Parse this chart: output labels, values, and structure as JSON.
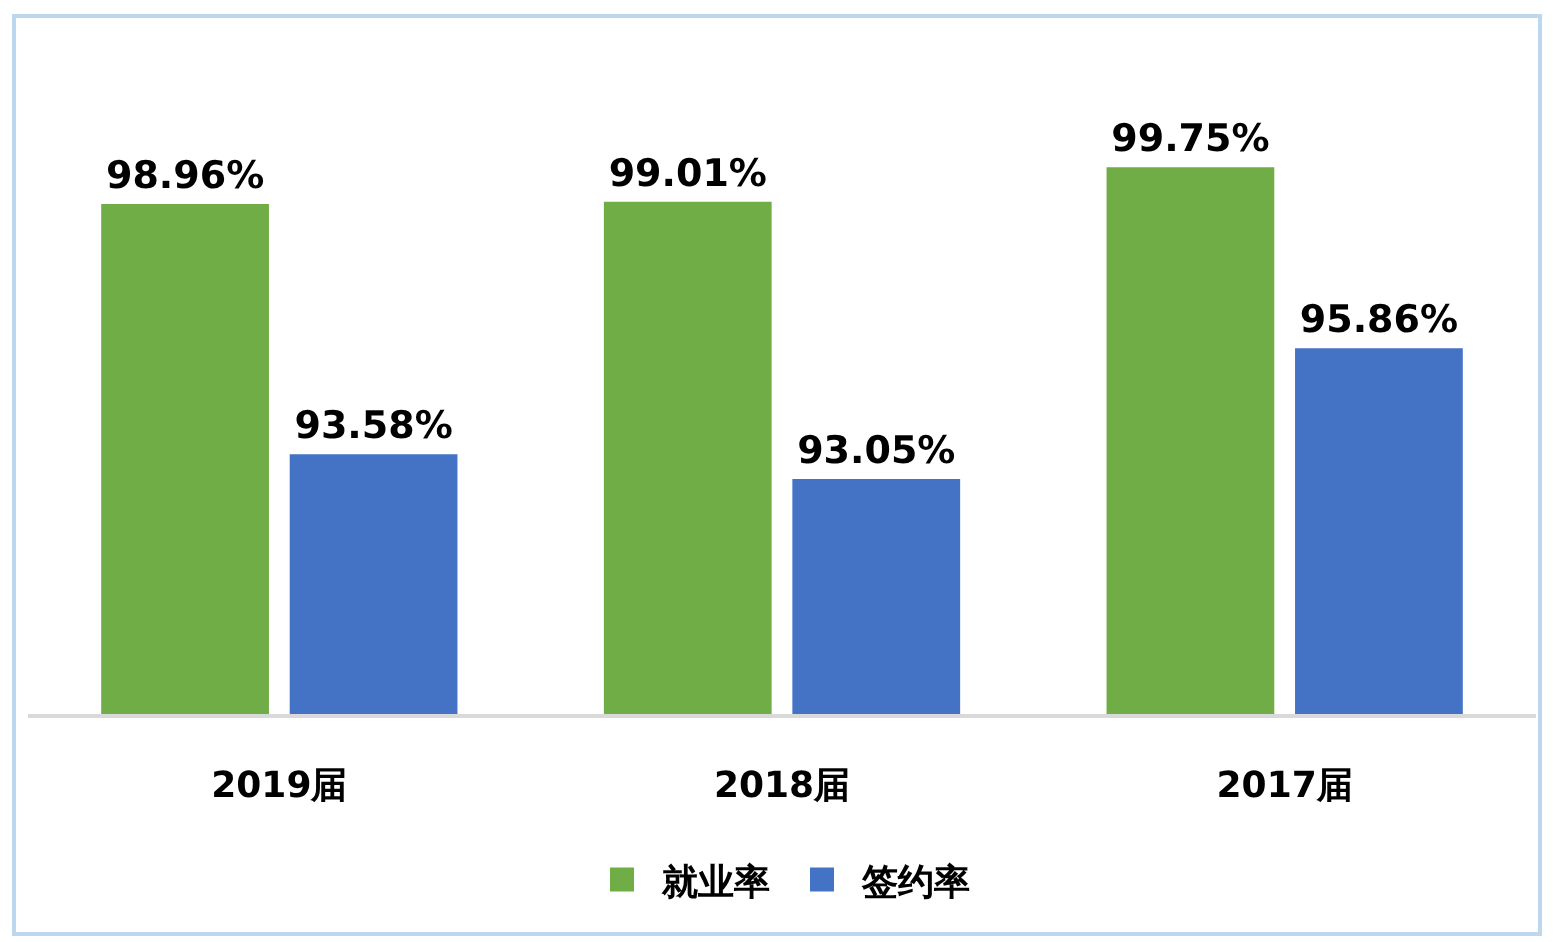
{
  "chart_data": {
    "type": "bar",
    "categories": [
      "2019届",
      "2018届",
      "2017届"
    ],
    "series": [
      {
        "name": "就业率",
        "color": "#70ad47",
        "values": [
          98.96,
          99.01,
          99.75
        ],
        "value_labels": [
          "98.96%",
          "99.01%",
          "99.75%"
        ]
      },
      {
        "name": "签约率",
        "color": "#4472c4",
        "values": [
          93.58,
          93.05,
          95.86
        ],
        "value_labels": [
          "93.58%",
          "93.05%",
          "95.86%"
        ]
      }
    ],
    "ylim": [
      88,
      103
    ],
    "tick_labels": "x",
    "legend": "bottom"
  }
}
